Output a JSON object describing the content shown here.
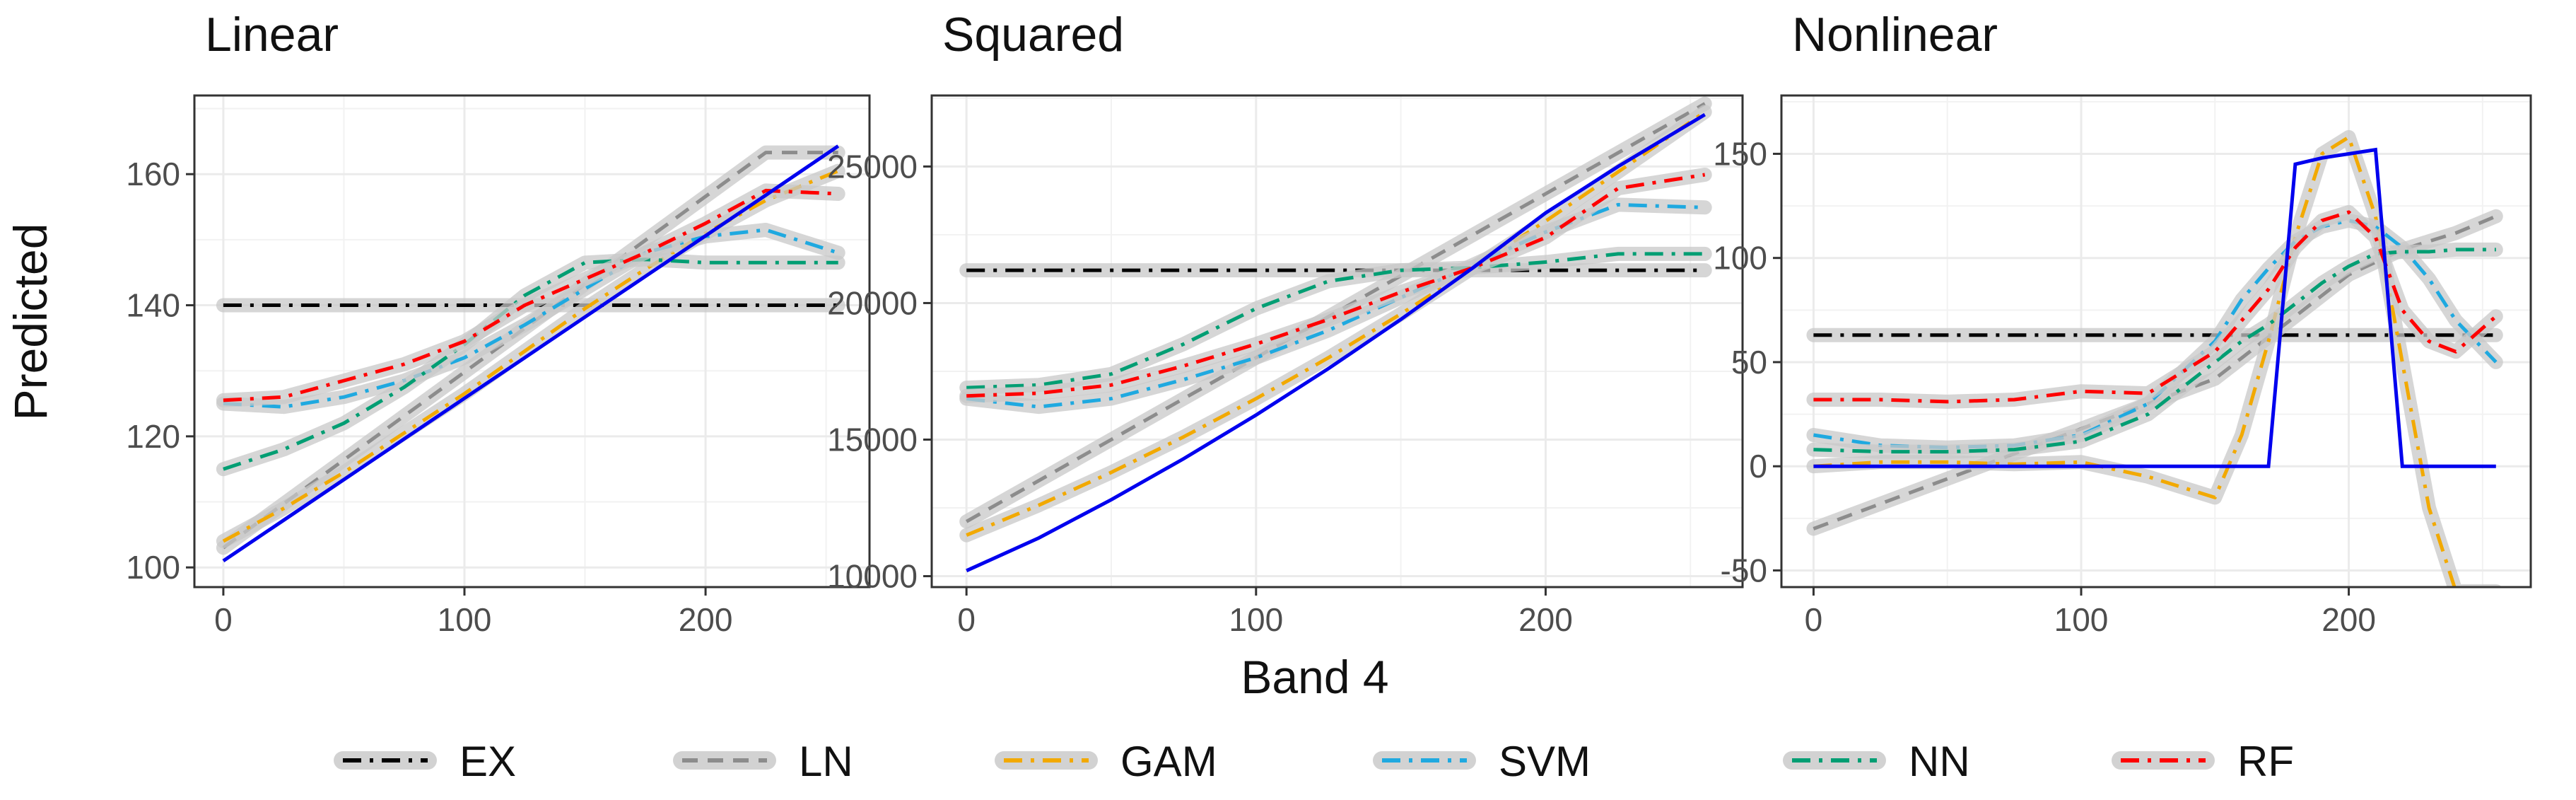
{
  "figure": {
    "xlabel": "Band 4",
    "ylabel": "Predicted"
  },
  "legend": {
    "placement": "bottom",
    "entries": [
      {
        "name": "EX",
        "color": "#000000",
        "dash": "dashdot"
      },
      {
        "name": "LN",
        "color": "#8c8c8c",
        "dash": "dashed"
      },
      {
        "name": "GAM",
        "color": "#f2a900",
        "dash": "dashdot"
      },
      {
        "name": "SVM",
        "color": "#1fa9e0",
        "dash": "dashdot"
      },
      {
        "name": "NN",
        "color": "#009e73",
        "dash": "dashdot"
      },
      {
        "name": "RF",
        "color": "#ff0000",
        "dash": "dashdot"
      }
    ]
  },
  "colors": {
    "true": "#0000ee",
    "band": "#c8c8c8",
    "grid": "#ebebeb",
    "frame": "#333333"
  },
  "chart_data": [
    {
      "type": "line",
      "title": "Linear",
      "xlim": [
        -12,
        268
      ],
      "ylim": [
        97,
        172
      ],
      "xticks": [
        0,
        100,
        200
      ],
      "yticks": [
        100,
        120,
        140,
        160
      ],
      "grid": true,
      "x": [
        0,
        25,
        50,
        75,
        100,
        125,
        150,
        175,
        200,
        225,
        255
      ],
      "true": [
        101,
        107.2,
        113.4,
        119.6,
        125.8,
        132,
        138.2,
        144.4,
        150.6,
        156.8,
        164.3
      ],
      "series": [
        {
          "name": "EX",
          "values": [
            140,
            140,
            140,
            140,
            140,
            140,
            140,
            140,
            140,
            140,
            140
          ]
        },
        {
          "name": "LN",
          "values": [
            103,
            109.7,
            116.4,
            123.1,
            129.8,
            136.5,
            143.2,
            149.9,
            156.6,
            163.3,
            163.3
          ]
        },
        {
          "name": "GAM",
          "values": [
            104,
            109,
            114.5,
            120.5,
            126.5,
            133,
            139.5,
            145.5,
            151,
            156,
            160.5
          ]
        },
        {
          "name": "SVM",
          "values": [
            125,
            124.5,
            126,
            128.5,
            132,
            137,
            142.5,
            148,
            150.5,
            151.5,
            148
          ]
        },
        {
          "name": "NN",
          "values": [
            115,
            118,
            122,
            127.5,
            134,
            141.5,
            146.5,
            147,
            146.5,
            146.5,
            146.5
          ]
        },
        {
          "name": "RF",
          "values": [
            125.5,
            126,
            128.5,
            131,
            134.5,
            140,
            144,
            148,
            152.5,
            157.5,
            157
          ]
        }
      ]
    },
    {
      "type": "line",
      "title": "Squared",
      "xlim": [
        -12,
        268
      ],
      "ylim": [
        9600,
        27600
      ],
      "xticks": [
        0,
        100,
        200
      ],
      "yticks": [
        10000,
        15000,
        20000,
        25000
      ],
      "grid": true,
      "x": [
        0,
        25,
        50,
        75,
        100,
        125,
        150,
        175,
        200,
        225,
        255
      ],
      "true": [
        10200,
        11400,
        12800,
        14300,
        15900,
        17600,
        19400,
        21300,
        23300,
        25000,
        26900
      ],
      "series": [
        {
          "name": "EX",
          "values": [
            21200,
            21200,
            21200,
            21200,
            21200,
            21200,
            21200,
            21200,
            21200,
            21200,
            21200
          ]
        },
        {
          "name": "LN",
          "values": [
            12000,
            13500,
            15000,
            16500,
            18000,
            19500,
            21000,
            22500,
            24000,
            25500,
            27300
          ]
        },
        {
          "name": "GAM",
          "values": [
            11500,
            12600,
            13800,
            15100,
            16500,
            18000,
            19600,
            21300,
            23000,
            24800,
            27000
          ]
        },
        {
          "name": "SVM",
          "values": [
            16500,
            16200,
            16500,
            17200,
            18000,
            19000,
            20200,
            21400,
            22600,
            23600,
            23500
          ]
        },
        {
          "name": "NN",
          "values": [
            16900,
            17000,
            17400,
            18500,
            19800,
            20800,
            21200,
            21300,
            21500,
            21800,
            21800
          ]
        },
        {
          "name": "RF",
          "values": [
            16600,
            16700,
            17000,
            17700,
            18500,
            19400,
            20400,
            21300,
            22400,
            24200,
            24700
          ]
        }
      ]
    },
    {
      "type": "line",
      "title": "Nonlinear",
      "xlim": [
        -12,
        268
      ],
      "ylim": [
        -58,
        178
      ],
      "xticks": [
        0,
        100,
        200
      ],
      "yticks": [
        -50,
        0,
        50,
        100,
        150
      ],
      "grid": true,
      "x": [
        0,
        25,
        50,
        75,
        100,
        125,
        150,
        160,
        170,
        180,
        190,
        200,
        210,
        220,
        230,
        240,
        255
      ],
      "true": [
        0,
        0,
        0,
        0,
        0,
        0,
        0,
        0,
        0,
        145,
        148,
        150,
        152,
        0,
        0,
        0,
        0
      ],
      "series": [
        {
          "name": "EX",
          "values": [
            63,
            63,
            63,
            63,
            63,
            63,
            63,
            63,
            63,
            63,
            63,
            63,
            63,
            63,
            63,
            63,
            63
          ]
        },
        {
          "name": "LN",
          "values": [
            -30,
            -18,
            -6,
            6,
            18,
            30,
            42,
            52,
            62,
            72,
            82,
            92,
            98,
            104,
            108,
            112,
            120
          ]
        },
        {
          "name": "GAM",
          "values": [
            0,
            2,
            2,
            1,
            2,
            -5,
            -15,
            15,
            60,
            110,
            150,
            158,
            120,
            50,
            -20,
            -60,
            -60
          ]
        },
        {
          "name": "SVM",
          "values": [
            15,
            10,
            9,
            10,
            15,
            30,
            60,
            80,
            95,
            108,
            115,
            118,
            115,
            105,
            90,
            70,
            50
          ]
        },
        {
          "name": "NN",
          "values": [
            8,
            7,
            7,
            8,
            12,
            25,
            50,
            60,
            68,
            78,
            88,
            96,
            102,
            103,
            103,
            104,
            104
          ]
        },
        {
          "name": "RF",
          "values": [
            32,
            32,
            31,
            32,
            36,
            35,
            55,
            70,
            85,
            105,
            118,
            122,
            110,
            75,
            60,
            55,
            72
          ]
        }
      ]
    }
  ]
}
